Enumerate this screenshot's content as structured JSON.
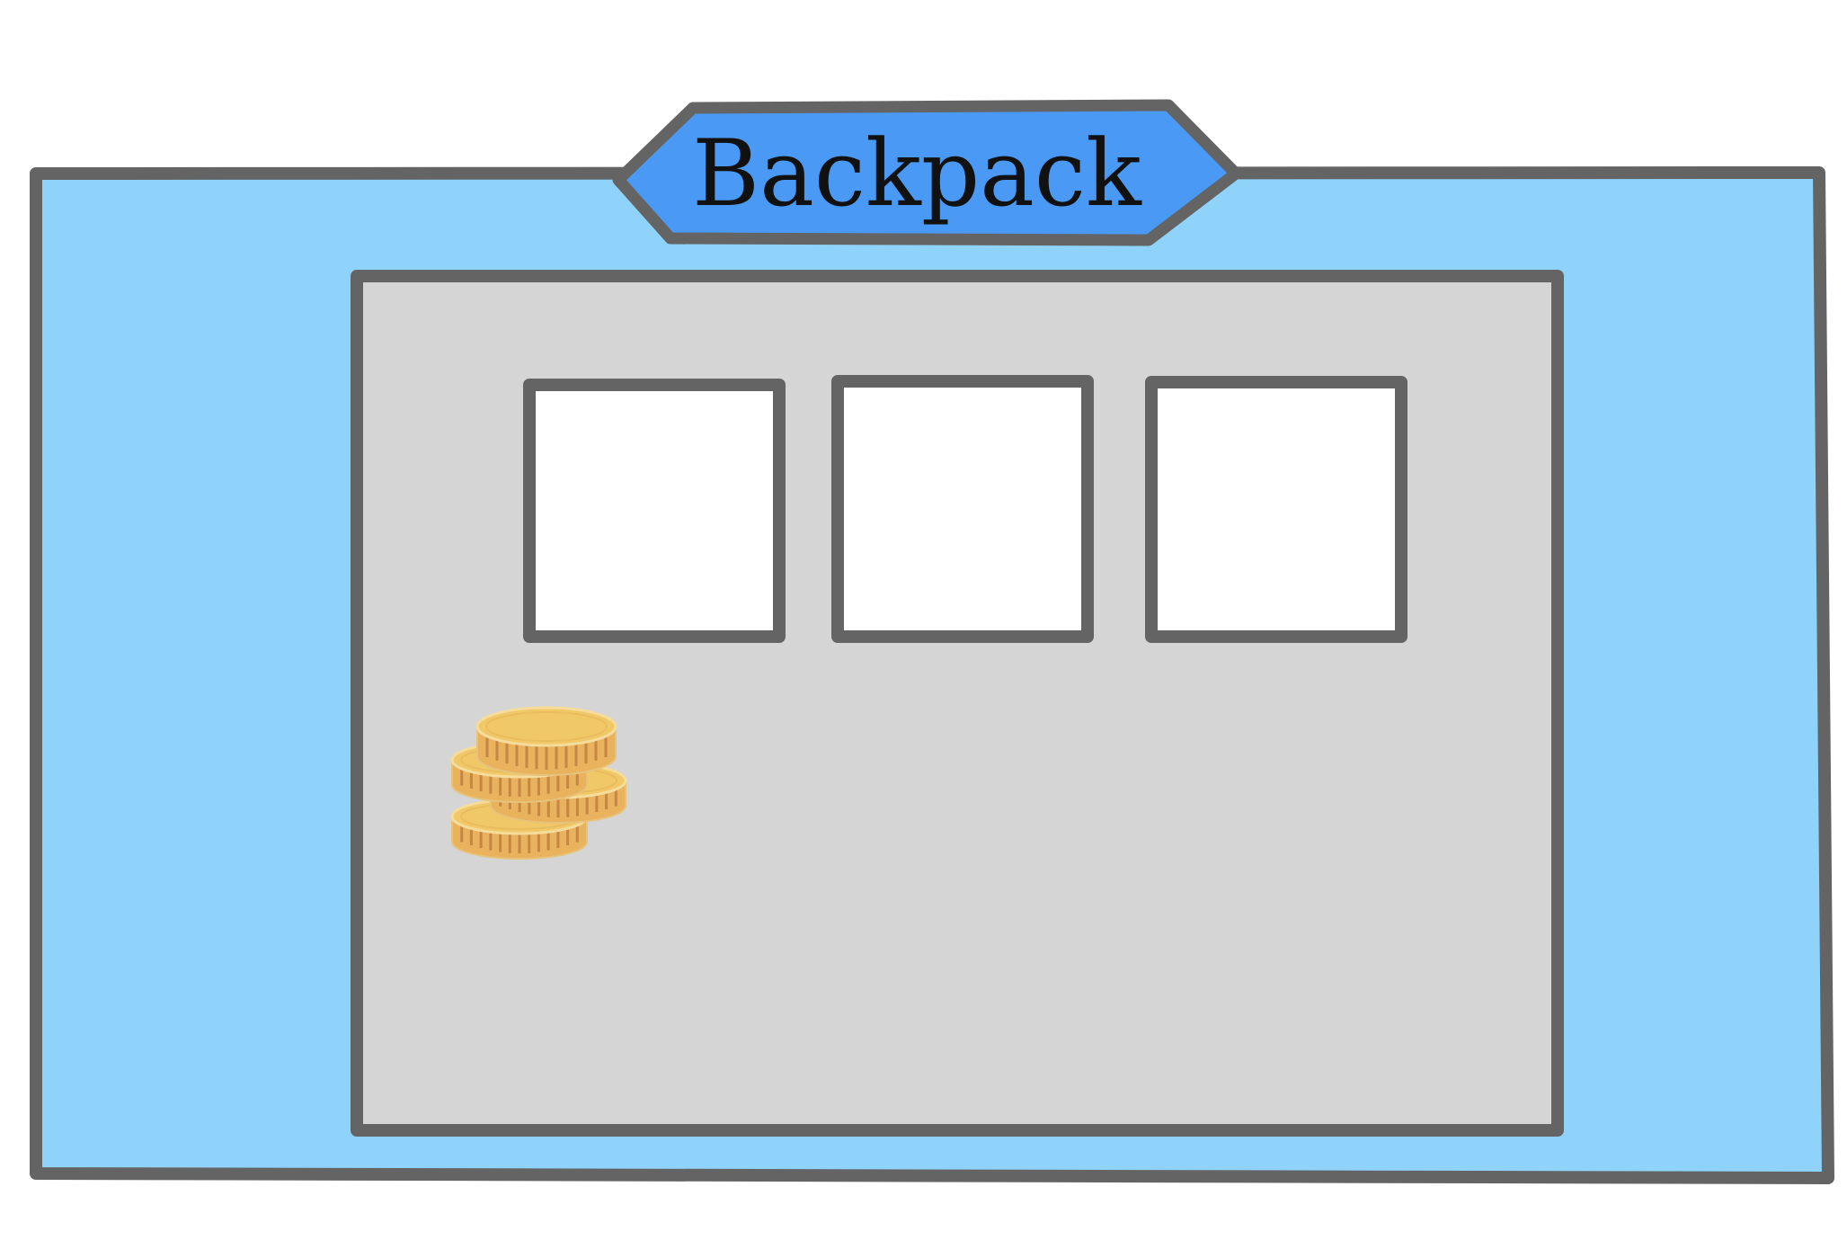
{
  "window": {
    "title": "Backpack"
  },
  "inventory": {
    "slots": [
      {
        "item": ""
      },
      {
        "item": ""
      },
      {
        "item": ""
      }
    ],
    "currency": {
      "icon": "coin-stack-icon"
    }
  },
  "colors": {
    "panel_background": "#8fd3fb",
    "title_banner": "#4a9af5",
    "inner_panel": "#d5d5d5",
    "slot_background": "#ffffff",
    "outline": "#646464",
    "coin_face": "#f0c868",
    "coin_edge": "#e9b25c",
    "coin_ridge": "#c58746"
  }
}
